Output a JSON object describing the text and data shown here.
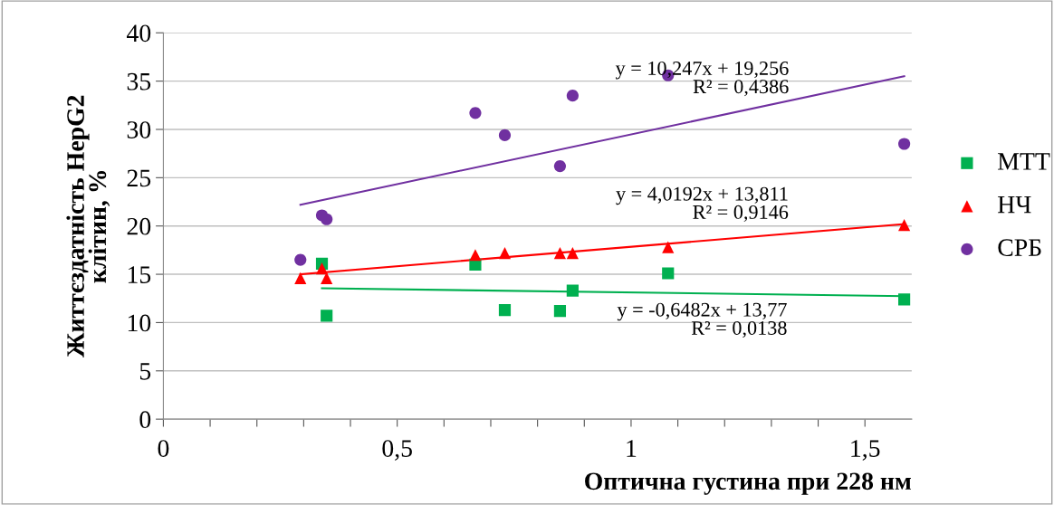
{
  "chart_data": {
    "type": "scatter",
    "xlabel": "Оптична густина при 228 нм",
    "ylabel": "Життєздатність HepG2\nклітин, %",
    "series": [
      {
        "name": "МТТ",
        "color": "#00b050",
        "marker": "square",
        "x": [
          0.339,
          0.349,
          0.667,
          0.73,
          0.848,
          0.875,
          1.079,
          1.584
        ],
        "values": [
          16.1,
          10.7,
          16.0,
          11.3,
          11.2,
          13.3,
          15.1,
          12.4
        ]
      },
      {
        "name": "НЧ",
        "color": "#ff0000",
        "marker": "triangle",
        "x": [
          0.293,
          0.339,
          0.349,
          0.667,
          0.73,
          0.848,
          0.875,
          1.079,
          1.584
        ],
        "values": [
          14.6,
          15.6,
          14.6,
          17.0,
          17.2,
          17.2,
          17.2,
          17.8,
          20.1
        ]
      },
      {
        "name": "СРБ",
        "color": "#7030a0",
        "marker": "circle",
        "x": [
          0.293,
          0.339,
          0.349,
          0.667,
          0.73,
          0.848,
          0.875,
          1.079,
          1.584
        ],
        "values": [
          16.5,
          21.1,
          20.7,
          31.7,
          29.4,
          26.2,
          33.5,
          35.6,
          28.5
        ]
      },
      {
        "type": "line",
        "color": "#00b050",
        "x": [
          0.339,
          1.584
        ],
        "values": [
          13.55,
          12.74
        ]
      },
      {
        "type": "line",
        "color": "#ff0000",
        "x": [
          0.293,
          1.584
        ],
        "values": [
          15.0,
          20.2
        ]
      },
      {
        "type": "line",
        "color": "#7030a0",
        "x": [
          0.293,
          1.584
        ],
        "values": [
          22.2,
          35.5
        ]
      }
    ],
    "annotations": [
      "y = 10,247x + 19,256\nR² = 0,4386",
      "y = 4,0192x + 13,811\nR² = 0,9146",
      "y = -0,6482x + 13,77\nR² = 0,0138"
    ],
    "xlim": [
      0,
      1.6
    ],
    "ylim": [
      0,
      40
    ],
    "xticks": [
      0,
      {
        "value": 0.1,
        "label": null
      },
      {
        "value": 0.2,
        "label": null
      },
      {
        "value": 0.3,
        "label": null
      },
      {
        "value": 0.4,
        "label": null
      },
      {
        "value": 0.5,
        "label": "0,5"
      },
      {
        "value": 0.6,
        "label": null
      },
      {
        "value": 0.7,
        "label": null
      },
      {
        "value": 0.8,
        "label": null
      },
      {
        "value": 0.9,
        "label": null
      },
      1,
      {
        "value": 1.1,
        "label": null
      },
      {
        "value": 1.2,
        "label": null
      },
      {
        "value": 1.3,
        "label": null
      },
      {
        "value": 1.4,
        "label": null
      },
      {
        "value": 1.5,
        "label": "1,5"
      }
    ],
    "yticks": [
      0,
      5,
      10,
      15,
      20,
      25,
      30,
      35,
      40
    ],
    "grid": "y",
    "legend": "right"
  }
}
